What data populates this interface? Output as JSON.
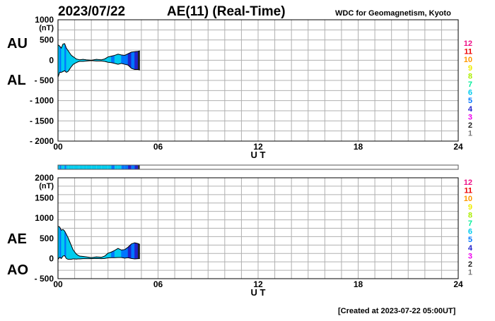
{
  "header": {
    "date": "2023/07/22",
    "title": "AE(11) (Real-Time)",
    "source": "WDC for Geomagnetism, Kyoto"
  },
  "footer": {
    "created": "[Created at 2023-07-22 05:00UT]"
  },
  "colors": {
    "levels": [
      "#c8c8c8",
      "#7a7a7a",
      "#222222",
      "#ee00ee",
      "#2222cc",
      "#0077ff",
      "#00ccee",
      "#00ee99",
      "#aaee00",
      "#eeee00",
      "#ff9900",
      "#ee0000",
      "#ee1188"
    ],
    "fill_main": "#22eedd",
    "fill_band": "#1166dd",
    "fill_dark": "#2222aa"
  },
  "legend": {
    "levels": [
      "12",
      "11",
      "10",
      "9",
      "8",
      "7",
      "6",
      "5",
      "4",
      "3",
      "2",
      "1"
    ]
  },
  "chart_data": [
    {
      "type": "area",
      "series_labels": [
        "AU",
        "AL"
      ],
      "ylabel": "(nT)",
      "xlabel": "U T",
      "xlim": [
        0,
        24
      ],
      "ylim": [
        -2000,
        1000
      ],
      "x_ticks": [
        "00",
        "06",
        "12",
        "18",
        "24"
      ],
      "y_ticks": [
        "1000",
        "500",
        "0",
        "- 500",
        "- 1000",
        "- 1500",
        "- 2000"
      ],
      "x": [
        0,
        0.1,
        0.2,
        0.3,
        0.4,
        0.5,
        0.6,
        0.7,
        0.8,
        0.9,
        1.0,
        1.1,
        1.2,
        1.3,
        1.5,
        1.7,
        2.0,
        2.3,
        2.6,
        2.8,
        3.0,
        3.2,
        3.4,
        3.6,
        3.8,
        4.0,
        4.2,
        4.4,
        4.6,
        4.8,
        4.9
      ],
      "series": [
        {
          "name": "AU",
          "values": [
            380,
            350,
            300,
            400,
            410,
            300,
            240,
            180,
            120,
            90,
            60,
            30,
            20,
            10,
            20,
            10,
            0,
            20,
            10,
            30,
            80,
            100,
            120,
            150,
            130,
            120,
            160,
            200,
            210,
            220,
            230
          ]
        },
        {
          "name": "AL",
          "values": [
            -420,
            -300,
            -300,
            -280,
            -260,
            -300,
            -280,
            -220,
            -160,
            -110,
            -80,
            -60,
            -40,
            -30,
            -30,
            -20,
            -10,
            -20,
            -20,
            -30,
            -50,
            -60,
            -80,
            -100,
            -80,
            -100,
            -120,
            -200,
            -230,
            -230,
            -240
          ]
        }
      ],
      "activity": [
        "#00ccee",
        "#0077ff",
        "#00ccee",
        "#00ccee",
        "#0077ff",
        "#00ccee",
        "#00ccee",
        "#00ccee",
        "#00ccee",
        "#00ccee",
        "#00ccee",
        "#00ccee",
        "#00ccee",
        "#00ccee",
        "#00ccee",
        "#00ccee",
        "#00ccee",
        "#00ccee",
        "#00ccee",
        "#00ccee",
        "#00ccee",
        "#0077ff",
        "#00ccee",
        "#00ccee",
        "#0077ff",
        "#0077ff",
        "#2222cc",
        "#0077ff",
        "#2222cc",
        "#222222",
        "#222222"
      ]
    },
    {
      "type": "area",
      "series_labels": [
        "AE",
        "AO"
      ],
      "ylabel": "(nT)",
      "xlabel": "U T",
      "xlim": [
        0,
        24
      ],
      "ylim": [
        -500,
        2000
      ],
      "x_ticks": [
        "00",
        "06",
        "12",
        "18",
        "24"
      ],
      "y_ticks": [
        "2000",
        "1500",
        "1000",
        "500",
        "0",
        "- 500"
      ],
      "x": [
        0,
        0.1,
        0.2,
        0.3,
        0.4,
        0.5,
        0.6,
        0.7,
        0.8,
        0.9,
        1.0,
        1.1,
        1.2,
        1.3,
        1.5,
        1.7,
        2.0,
        2.3,
        2.6,
        2.8,
        3.0,
        3.2,
        3.4,
        3.6,
        3.8,
        4.0,
        4.2,
        4.4,
        4.6,
        4.8,
        4.9
      ],
      "series": [
        {
          "name": "AE",
          "values": [
            800,
            780,
            700,
            720,
            680,
            600,
            520,
            420,
            320,
            220,
            160,
            110,
            80,
            60,
            50,
            40,
            20,
            40,
            30,
            60,
            130,
            160,
            200,
            250,
            210,
            220,
            280,
            360,
            390,
            370,
            350
          ]
        },
        {
          "name": "AO",
          "values": [
            -20,
            30,
            0,
            60,
            70,
            0,
            -20,
            -20,
            -20,
            -10,
            -10,
            -15,
            -10,
            -10,
            -5,
            -5,
            -5,
            0,
            -5,
            0,
            15,
            20,
            20,
            25,
            25,
            10,
            20,
            0,
            -10,
            -5,
            -5
          ]
        }
      ]
    }
  ]
}
